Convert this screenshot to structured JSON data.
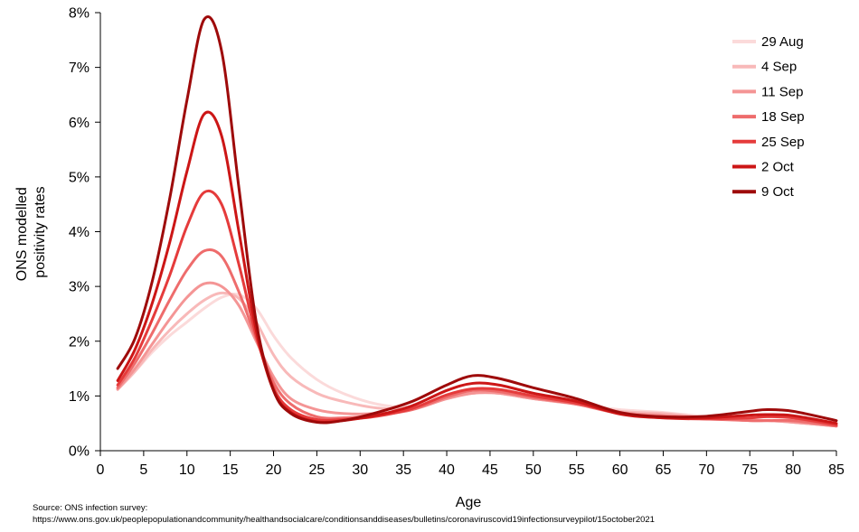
{
  "chart_data": {
    "type": "line",
    "title": "",
    "xlabel": "Age",
    "ylabel_lines": [
      "ONS modelled",
      "positivity rates"
    ],
    "xlim": [
      0,
      85
    ],
    "ylim": [
      0,
      8
    ],
    "x_ticks": [
      0,
      5,
      10,
      15,
      20,
      25,
      30,
      35,
      40,
      45,
      50,
      55,
      60,
      65,
      70,
      75,
      80,
      85
    ],
    "x_tick_labels": [
      "0",
      "5",
      "10",
      "15",
      "20",
      "25",
      "30",
      "35",
      "40",
      "45",
      "50",
      "55",
      "60",
      "65",
      "70",
      "75",
      "80",
      "85"
    ],
    "y_ticks": [
      0,
      1,
      2,
      3,
      4,
      5,
      6,
      7,
      8
    ],
    "y_tick_labels": [
      "0%",
      "1%",
      "2%",
      "3%",
      "4%",
      "5%",
      "6%",
      "7%",
      "8%"
    ],
    "grid": false,
    "legend_position": "top-right",
    "x": [
      2,
      4,
      6,
      8,
      10,
      12,
      14,
      16,
      18,
      20,
      22,
      25,
      28,
      32,
      36,
      40,
      43,
      46,
      50,
      55,
      60,
      65,
      70,
      75,
      77,
      80,
      85
    ],
    "series": [
      {
        "name": "29 Aug",
        "color": "#fbdada",
        "values": [
          1.15,
          1.45,
          1.8,
          2.1,
          2.35,
          2.6,
          2.8,
          2.85,
          2.6,
          2.1,
          1.7,
          1.3,
          1.05,
          0.85,
          0.8,
          0.95,
          1.05,
          1.05,
          0.95,
          0.85,
          0.75,
          0.7,
          0.62,
          0.55,
          0.55,
          0.52,
          0.45
        ]
      },
      {
        "name": "4 Sep",
        "color": "#f8b9b9",
        "values": [
          1.12,
          1.45,
          1.85,
          2.2,
          2.5,
          2.75,
          2.88,
          2.78,
          2.35,
          1.75,
          1.35,
          1.05,
          0.9,
          0.78,
          0.78,
          0.95,
          1.05,
          1.05,
          0.95,
          0.85,
          0.72,
          0.68,
          0.6,
          0.55,
          0.55,
          0.52,
          0.45
        ]
      },
      {
        "name": "11 Sep",
        "color": "#f49595",
        "values": [
          1.12,
          1.5,
          1.95,
          2.4,
          2.8,
          3.05,
          3.0,
          2.65,
          2.0,
          1.35,
          0.95,
          0.75,
          0.68,
          0.68,
          0.75,
          0.95,
          1.05,
          1.05,
          0.95,
          0.85,
          0.7,
          0.65,
          0.6,
          0.55,
          0.55,
          0.52,
          0.45
        ]
      },
      {
        "name": "18 Sep",
        "color": "#ee6c6c",
        "values": [
          1.15,
          1.6,
          2.15,
          2.75,
          3.3,
          3.65,
          3.55,
          2.9,
          2.05,
          1.25,
          0.85,
          0.62,
          0.6,
          0.65,
          0.75,
          0.98,
          1.1,
          1.08,
          0.97,
          0.85,
          0.68,
          0.62,
          0.58,
          0.55,
          0.55,
          0.55,
          0.45
        ]
      },
      {
        "name": "25 Sep",
        "color": "#e53b3b",
        "values": [
          1.2,
          1.7,
          2.4,
          3.2,
          4.1,
          4.72,
          4.5,
          3.4,
          2.1,
          1.15,
          0.75,
          0.57,
          0.57,
          0.63,
          0.77,
          1.02,
          1.13,
          1.12,
          1.0,
          0.87,
          0.68,
          0.6,
          0.58,
          0.6,
          0.62,
          0.6,
          0.47
        ]
      },
      {
        "name": "2 Oct",
        "color": "#cc1616",
        "values": [
          1.28,
          1.85,
          2.7,
          3.8,
          5.1,
          6.15,
          5.75,
          4.0,
          2.2,
          1.1,
          0.7,
          0.53,
          0.55,
          0.65,
          0.82,
          1.1,
          1.23,
          1.2,
          1.05,
          0.9,
          0.67,
          0.6,
          0.6,
          0.65,
          0.66,
          0.64,
          0.5
        ]
      },
      {
        "name": "9 Oct",
        "color": "#9e0a0a",
        "values": [
          1.5,
          2.05,
          3.1,
          4.6,
          6.4,
          7.88,
          7.3,
          4.8,
          2.35,
          1.1,
          0.68,
          0.52,
          0.55,
          0.7,
          0.9,
          1.2,
          1.37,
          1.32,
          1.15,
          0.95,
          0.7,
          0.62,
          0.63,
          0.72,
          0.75,
          0.72,
          0.55
        ]
      }
    ]
  },
  "source": {
    "line1": "Source: ONS infection survey:",
    "line2": "https://www.ons.gov.uk/peoplepopulationandcommunity/healthandsocialcare/conditionsanddiseases/bulletins/coronaviruscovid19infectionsurveypilot/15october2021"
  }
}
